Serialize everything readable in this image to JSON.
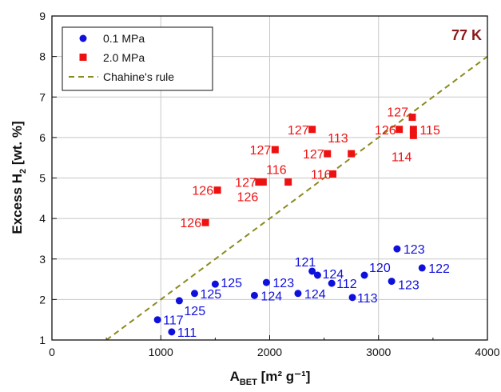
{
  "colors": {
    "blue": "#1010dd",
    "red": "#ee1111",
    "olive": "#8a8a1e",
    "annotation": "#8b1a1a"
  },
  "chart_data": {
    "type": "scatter",
    "annotation": "77 K",
    "xlabel": "A",
    "xlabel_sub": "BET",
    "xlabel_unit": " [m² g⁻¹]",
    "ylabel": "Excess H",
    "ylabel_sub": "2",
    "ylabel_unit": " [wt. %]",
    "xlim": [
      0,
      4000
    ],
    "ylim": [
      1,
      9
    ],
    "xticks": [
      0,
      1000,
      2000,
      3000,
      4000
    ],
    "yticks": [
      1,
      2,
      3,
      4,
      5,
      6,
      7,
      8,
      9
    ],
    "grid": true,
    "legend_position": "top-left",
    "series": [
      {
        "name": "0.1 MPa",
        "marker": "circle",
        "color": "#1010dd",
        "points": [
          {
            "x": 970,
            "y": 1.5,
            "label": "117"
          },
          {
            "x": 1100,
            "y": 1.2,
            "label": "111"
          },
          {
            "x": 1170,
            "y": 1.97,
            "label": "125"
          },
          {
            "x": 1310,
            "y": 2.15,
            "label": "125"
          },
          {
            "x": 1500,
            "y": 2.38,
            "label": "125"
          },
          {
            "x": 1860,
            "y": 2.1,
            "label": "124"
          },
          {
            "x": 1970,
            "y": 2.42,
            "label": "123"
          },
          {
            "x": 2260,
            "y": 2.15,
            "label": "124"
          },
          {
            "x": 2390,
            "y": 2.7,
            "label": "121"
          },
          {
            "x": 2440,
            "y": 2.6,
            "label": "124"
          },
          {
            "x": 2570,
            "y": 2.4,
            "label": "112"
          },
          {
            "x": 2760,
            "y": 2.05,
            "label": "113"
          },
          {
            "x": 2870,
            "y": 2.6,
            "label": "120"
          },
          {
            "x": 3120,
            "y": 2.45,
            "label": "123"
          },
          {
            "x": 3170,
            "y": 3.25,
            "label": "123"
          },
          {
            "x": 3400,
            "y": 2.78,
            "label": "122"
          }
        ]
      },
      {
        "name": "2.0 MPa",
        "marker": "square",
        "color": "#ee1111",
        "points": [
          {
            "x": 1410,
            "y": 3.9,
            "label": "126"
          },
          {
            "x": 1520,
            "y": 4.7,
            "label": "126"
          },
          {
            "x": 1900,
            "y": 4.9,
            "label": "127"
          },
          {
            "x": 1940,
            "y": 4.9,
            "label": "126"
          },
          {
            "x": 2050,
            "y": 5.7,
            "label": "127"
          },
          {
            "x": 2170,
            "y": 4.9,
            "label": "116"
          },
          {
            "x": 2390,
            "y": 6.2,
            "label": "127"
          },
          {
            "x": 2530,
            "y": 5.6,
            "label": "127"
          },
          {
            "x": 2580,
            "y": 5.1,
            "label": "116"
          },
          {
            "x": 2750,
            "y": 5.6,
            "label": "113"
          },
          {
            "x": 3190,
            "y": 6.2,
            "label": "126"
          },
          {
            "x": 3310,
            "y": 6.5,
            "label": "127"
          },
          {
            "x": 3320,
            "y": 6.2,
            "label": "115"
          },
          {
            "x": 3320,
            "y": 6.05,
            "label": "114"
          }
        ]
      },
      {
        "name": "Chahine's rule",
        "marker": "dashed-line",
        "color": "#8a8a1e",
        "points": [
          {
            "x": 500,
            "y": 1.0
          },
          {
            "x": 4000,
            "y": 8.0
          }
        ]
      }
    ]
  }
}
